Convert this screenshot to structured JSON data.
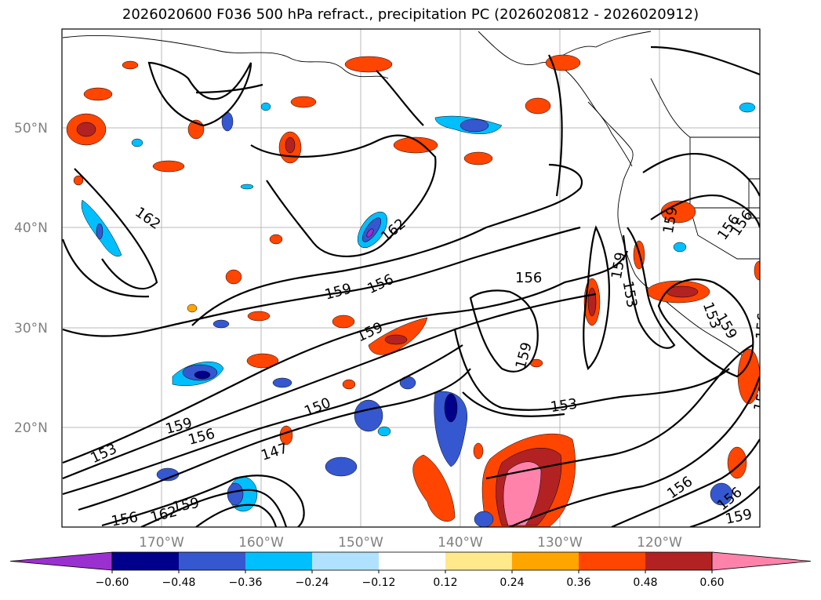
{
  "title": "2026020600 F036 500 hPa refract., precipitation PC (2026020812 - 2026020912)",
  "lat_labels": [
    "50°N",
    "40°N",
    "30°N",
    "20°N"
  ],
  "lon_labels": [
    "170°W",
    "160°W",
    "150°W",
    "140°W",
    "130°W",
    "120°W"
  ],
  "colorbar": {
    "ticks": [
      "−0.60",
      "−0.48",
      "−0.36",
      "−0.24",
      "−0.12",
      "0.12",
      "0.24",
      "0.36",
      "0.48",
      "0.60"
    ],
    "colors": [
      "#9b30d0",
      "#00008b",
      "#3558d0",
      "#00bfff",
      "#b0e2ff",
      "#ffffff",
      "#ffe98a",
      "#ffa500",
      "#ff4500",
      "#b22222",
      "#ff82ab"
    ]
  },
  "contour_labels": [
    "162",
    "162",
    "159",
    "156",
    "159",
    "159",
    "156",
    "153",
    "159",
    "156",
    "153",
    "150",
    "147",
    "156",
    "162",
    "159",
    "153",
    "159",
    "159",
    "156",
    "153",
    "156",
    "159",
    "156",
    "156",
    "159",
    "159",
    "156"
  ]
}
